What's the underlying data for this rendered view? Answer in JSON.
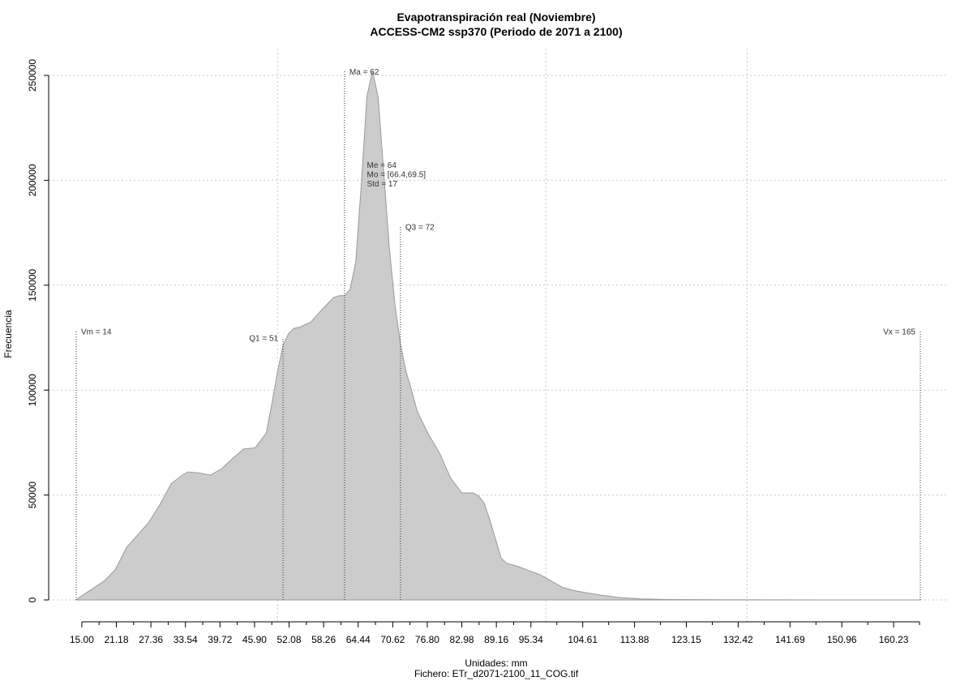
{
  "chart_data": {
    "type": "area",
    "title": "Evapotranspiración real (Noviembre)",
    "subtitle": "ACCESS-CM2 ssp370 (Periodo de 2071 a 2100)",
    "xlabel": "Unidades: mm",
    "ylabel": "Frecuencia",
    "footer": "Fichero: ETr_d2071-2100_11_COG.tif",
    "xlim": [
      14,
      165
    ],
    "ylim": [
      0,
      250000
    ],
    "grid": true,
    "fill_color": "#cccccc",
    "line_color": "#999999",
    "x_ticks": [
      15.0,
      21.18,
      27.36,
      33.54,
      39.72,
      45.9,
      52.08,
      58.26,
      64.44,
      70.62,
      76.8,
      82.98,
      89.16,
      95.34,
      104.61,
      113.88,
      123.15,
      132.42,
      141.69,
      150.96,
      160.23
    ],
    "x_tick_labels": [
      "15.00",
      "21.18",
      "27.36",
      "33.54",
      "39.72",
      "45.90",
      "52.08",
      "58.26",
      "64.44",
      "70.62",
      "76.80",
      "82.98",
      "89.16",
      "95.34",
      "104.61",
      "113.88",
      "123.15",
      "132.42",
      "141.69",
      "150.96",
      "160.23"
    ],
    "x_minor_ticks": [
      18.09,
      24.27,
      30.45,
      36.63,
      42.81,
      48.99,
      55.17,
      61.35,
      67.53,
      73.71,
      79.89,
      86.07,
      92.25,
      99.98,
      109.25,
      118.52,
      127.79,
      137.06,
      146.33,
      155.6,
      164.87
    ],
    "y_ticks": [
      0,
      50000,
      100000,
      150000,
      200000,
      250000
    ],
    "y_tick_labels": [
      "0",
      "50000",
      "100000",
      "150000",
      "200000",
      "250000"
    ],
    "x_grid": [
      50,
      98,
      134
    ],
    "x": [
      14,
      15,
      17,
      19,
      21,
      23,
      25,
      27,
      29,
      31,
      33,
      34,
      36,
      38,
      40,
      42,
      44,
      46,
      48,
      49,
      50,
      51,
      52,
      53,
      54,
      56,
      58,
      60,
      61,
      62,
      63,
      64,
      65,
      66,
      67,
      68,
      69,
      70,
      71,
      72,
      73,
      74,
      75,
      77,
      79,
      81,
      83,
      85,
      86,
      87,
      88,
      89,
      90,
      91,
      93,
      95,
      97,
      99,
      101,
      103,
      105,
      108,
      111,
      115,
      120,
      130,
      140,
      150,
      160,
      165
    ],
    "y": [
      0,
      2000,
      5500,
      9000,
      14500,
      25000,
      31000,
      37000,
      45500,
      55500,
      59500,
      61000,
      60500,
      59500,
      62500,
      67500,
      72000,
      72500,
      79500,
      93500,
      108500,
      121500,
      127000,
      129500,
      130000,
      132500,
      138500,
      144000,
      145000,
      145000,
      148000,
      161000,
      198000,
      240000,
      252000,
      240000,
      204000,
      168000,
      141000,
      122000,
      109000,
      100000,
      90000,
      79000,
      70000,
      58000,
      51000,
      51000,
      49500,
      46000,
      38000,
      29000,
      20000,
      17500,
      16000,
      14000,
      12000,
      9000,
      6000,
      4500,
      3500,
      2200,
      1200,
      500,
      200,
      80,
      30,
      10,
      0,
      0
    ],
    "markers": [
      {
        "label": "Vm = 14",
        "x": 14,
        "top": 128000,
        "label_side": "right"
      },
      {
        "label": "Q1 = 51",
        "x": 51,
        "top": 125000,
        "label_side": "left"
      },
      {
        "label": "Ma = 62",
        "x": 62,
        "top": 252000,
        "label_side": "right"
      },
      {
        "label": "Q3 = 72",
        "x": 72,
        "top": 178000,
        "label_side": "right"
      },
      {
        "label": "Vx = 165",
        "x": 165,
        "top": 128000,
        "label_side": "left"
      }
    ],
    "stats_labels": [
      "Me = 64",
      "Mo = [66.4,69.5]",
      "Std = 17"
    ],
    "stats_anchor": {
      "x": 66,
      "y": 206000
    }
  }
}
